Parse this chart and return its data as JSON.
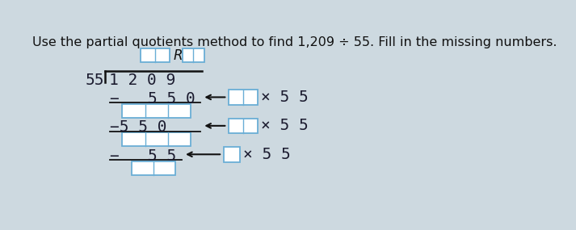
{
  "title": "Use the partial quotients method to find 1,209 ÷ 55. Fill in the missing numbers.",
  "title_fontsize": 11.5,
  "bg_color": "#cdd9e0",
  "box_color": "#ffffff",
  "box_border_1": "#6aaed6",
  "box_border_2": "#6aaed6",
  "text_color": "#1a1a2e",
  "divisor": "55",
  "dividend": "1 2 0 9",
  "sub1": "−   5 5 0",
  "sub2": "−5 5 0",
  "sub3": "−   5 5",
  "times_label": "× 5 5",
  "R_label": "R"
}
